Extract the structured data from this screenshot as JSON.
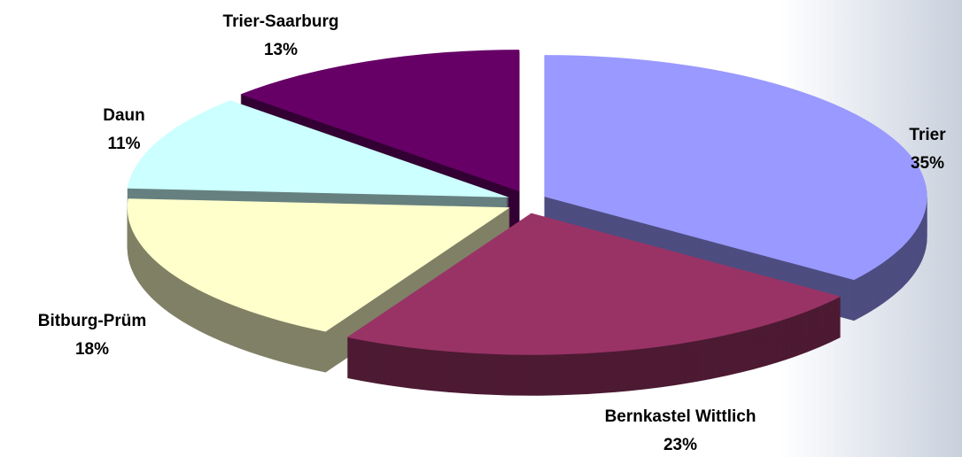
{
  "chart_data": {
    "type": "pie",
    "categories": [
      "Trier",
      "Bernkastel Wittlich",
      "Bitburg-Prüm",
      "Daun",
      "Trier-Saarburg"
    ],
    "values": [
      35,
      23,
      18,
      11,
      13
    ],
    "value_labels": [
      "35%",
      "23%",
      "18%",
      "11%",
      "13%"
    ],
    "colors": [
      "#9999ff",
      "#993366",
      "#ffffcc",
      "#ccffff",
      "#660066"
    ]
  }
}
